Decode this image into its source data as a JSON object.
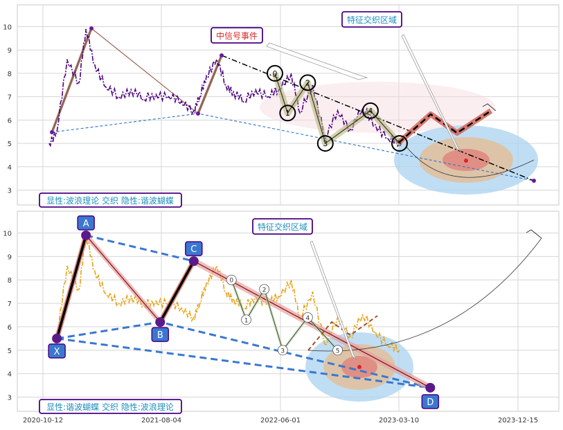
{
  "chart_data": [
    {
      "type": "line",
      "panel": "top",
      "x_ticks": [
        "2020-10-12",
        "2021-08-04",
        "2022-06-01",
        "2023-03-10",
        "2023-12-15"
      ],
      "y_ticks": [
        3,
        4,
        5,
        6,
        7,
        8,
        9,
        10
      ],
      "ylim": [
        2.4,
        10.9
      ],
      "grid": true,
      "series": [
        {
          "style": "dash-dot",
          "color": "#4b0082",
          "x": [
            "2020-10-27",
            "2020-11-15",
            "2020-12-10",
            "2021-01-08",
            "2021-01-25",
            "2021-02-15",
            "2021-03-15",
            "2021-04-15",
            "2021-05-15",
            "2021-06-15",
            "2021-07-15",
            "2021-08-15",
            "2021-09-15",
            "2021-10-15",
            "2021-10-30",
            "2021-11-15",
            "2021-12-10",
            "2022-01-01",
            "2022-01-20",
            "2022-02-15",
            "2022-03-15",
            "2022-04-15",
            "2022-05-10",
            "2022-06-10",
            "2022-07-01",
            "2022-08-01",
            "2022-09-01",
            "2022-10-01",
            "2022-11-01",
            "2022-12-01",
            "2023-01-01",
            "2023-02-01",
            "2023-03-01"
          ],
          "y": [
            5.0,
            5.5,
            8.6,
            7.6,
            9.9,
            8.4,
            7.4,
            7.0,
            7.3,
            6.9,
            7.1,
            7.0,
            6.8,
            6.4,
            7.0,
            7.9,
            8.6,
            7.5,
            7.2,
            6.8,
            7.3,
            7.0,
            7.3,
            8.0,
            6.3,
            7.5,
            5.2,
            6.4,
            5.6,
            6.5,
            5.8,
            5.2,
            5.0
          ]
        }
      ],
      "events": [
        {
          "label": "0",
          "date": "2022-05-01",
          "value": 8.0
        },
        {
          "label": "1",
          "date": "2022-06-01",
          "value": 6.3
        },
        {
          "label": "2",
          "date": "2022-07-20",
          "value": 7.6
        },
        {
          "label": "3",
          "date": "2022-09-01",
          "value": 5.0
        },
        {
          "label": "4",
          "date": "2022-12-20",
          "value": 6.4
        },
        {
          "label": "5",
          "date": "2023-03-01",
          "value": 5.0
        }
      ],
      "annotations": [
        "中信号事件",
        "特征交织区域"
      ],
      "caption": "显性:波浪理论 交织 隐性:谐波蝴蝶"
    },
    {
      "type": "line",
      "panel": "bottom",
      "x_ticks": [
        "2020-10-12",
        "2021-08-04",
        "2022-06-01",
        "2023-03-10",
        "2023-12-15"
      ],
      "y_ticks": [
        3,
        4,
        5,
        6,
        7,
        8,
        9,
        10
      ],
      "ylim": [
        2.4,
        10.9
      ],
      "grid": true,
      "series": [
        {
          "style": "dash-dot",
          "color": "#e8a317",
          "x": [
            "2020-10-27",
            "2020-11-15",
            "2020-12-10",
            "2021-01-08",
            "2021-01-25",
            "2021-02-15",
            "2021-03-15",
            "2021-04-15",
            "2021-05-15",
            "2021-06-15",
            "2021-07-15",
            "2021-08-15",
            "2021-09-15",
            "2021-10-15",
            "2021-10-30",
            "2021-11-15",
            "2021-12-10",
            "2022-01-01",
            "2022-01-20",
            "2022-02-15",
            "2022-03-15",
            "2022-04-15",
            "2022-05-10",
            "2022-06-10",
            "2022-07-01",
            "2022-08-01",
            "2022-09-01",
            "2022-10-01",
            "2022-11-01",
            "2022-12-01",
            "2023-01-01",
            "2023-02-01",
            "2023-03-01"
          ],
          "y": [
            5.0,
            5.5,
            8.6,
            7.6,
            9.9,
            8.4,
            7.4,
            7.0,
            7.3,
            6.9,
            7.1,
            7.0,
            6.8,
            6.4,
            7.0,
            7.9,
            8.6,
            7.5,
            7.2,
            6.8,
            7.3,
            7.0,
            7.3,
            8.0,
            6.3,
            7.5,
            5.2,
            6.4,
            5.6,
            6.5,
            5.8,
            5.2,
            5.0
          ]
        }
      ],
      "pattern_points": [
        {
          "label": "X",
          "date": "2020-11-15",
          "value": 5.5
        },
        {
          "label": "A",
          "date": "2021-01-25",
          "value": 9.9
        },
        {
          "label": "B",
          "date": "2021-07-25",
          "value": 6.2
        },
        {
          "label": "C",
          "date": "2021-10-15",
          "value": 8.8
        },
        {
          "label": "D",
          "date": "2023-05-15",
          "value": 3.4
        }
      ],
      "wave_labels": [
        {
          "label": "0",
          "date": "2022-01-15",
          "value": 8.0
        },
        {
          "label": "1",
          "date": "2022-02-20",
          "value": 6.3
        },
        {
          "label": "2",
          "date": "2022-04-05",
          "value": 7.6
        },
        {
          "label": "3",
          "date": "2022-05-20",
          "value": 5.0
        },
        {
          "label": "4",
          "date": "2022-07-20",
          "value": 6.4
        },
        {
          "label": "5",
          "date": "2022-10-01",
          "value": 5.0
        }
      ],
      "annotations": [
        "特征交织区域"
      ],
      "caption": "显性:谐波蝴蝶 交织 隐性:波浪理论"
    }
  ]
}
